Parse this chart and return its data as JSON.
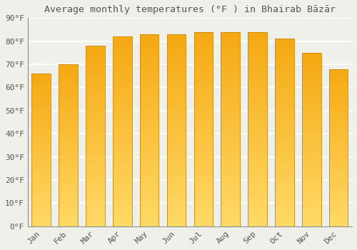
{
  "title": "Average monthly temperatures (°F ) in Bhairab Bāzār",
  "months": [
    "Jan",
    "Feb",
    "Mar",
    "Apr",
    "May",
    "Jun",
    "Jul",
    "Aug",
    "Sep",
    "Oct",
    "Nov",
    "Dec"
  ],
  "values": [
    66,
    70,
    78,
    82,
    83,
    83,
    84,
    84,
    84,
    81,
    75,
    68
  ],
  "bar_color_top": "#F5A800",
  "bar_color_bottom": "#FFD966",
  "bar_edge_color": "#C8860A",
  "background_color": "#f0f0eb",
  "grid_color": "#ffffff",
  "text_color": "#555555",
  "ylim": [
    0,
    90
  ],
  "yticks": [
    0,
    10,
    20,
    30,
    40,
    50,
    60,
    70,
    80,
    90
  ],
  "ytick_labels": [
    "0°F",
    "10°F",
    "20°F",
    "30°F",
    "40°F",
    "50°F",
    "60°F",
    "70°F",
    "80°F",
    "90°F"
  ],
  "title_fontsize": 9.5,
  "tick_fontsize": 8,
  "font_family": "monospace",
  "bar_width": 0.7,
  "gradient_steps": 100
}
